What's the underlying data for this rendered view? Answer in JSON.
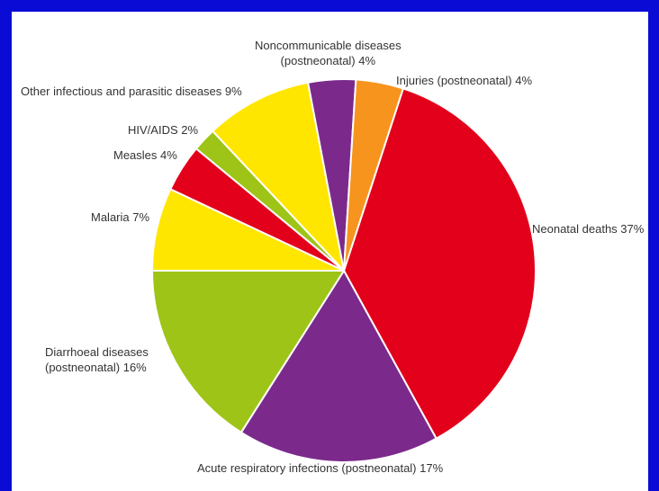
{
  "chart_data": {
    "type": "pie",
    "title": "",
    "slices": [
      {
        "label": "Neonatal deaths",
        "value": 37,
        "label_lines": [
          "Neonatal deaths 37%"
        ],
        "color": "#e3001b"
      },
      {
        "label": "Acute respiratory infections (postneonatal)",
        "value": 17,
        "label_lines": [
          "Acute respiratory infections (postneonatal) 17%"
        ],
        "color": "#7b2a8c"
      },
      {
        "label": "Diarrhoeal diseases (postneonatal)",
        "value": 16,
        "label_lines": [
          "Diarrhoeal diseases",
          "(postneonatal) 16%"
        ],
        "color": "#9ec417"
      },
      {
        "label": "Malaria",
        "value": 7,
        "label_lines": [
          "Malaria 7%"
        ],
        "color": "#ffe600"
      },
      {
        "label": "Measles",
        "value": 4,
        "label_lines": [
          "Measles 4%"
        ],
        "color": "#e3001b"
      },
      {
        "label": "HIV/AIDS",
        "value": 2,
        "label_lines": [
          "HIV/AIDS 2%"
        ],
        "color": "#9ec417"
      },
      {
        "label": "Other infectious and parasitic diseases",
        "value": 9,
        "label_lines": [
          "Other infectious and parasitic diseases 9%"
        ],
        "color": "#ffe600"
      },
      {
        "label": "Noncommunicable diseases (postneonatal)",
        "value": 4,
        "label_lines": [
          "Noncommunicable diseases",
          "(postneonatal) 4%"
        ],
        "color": "#7b2a8c"
      },
      {
        "label": "Injuries (postneonatal)",
        "value": 4,
        "label_lines": [
          "Injuries (postneonatal) 4%"
        ],
        "color": "#f7941d"
      }
    ]
  },
  "colors": {
    "frame": "#0b0bd6",
    "panel": "#ffffff",
    "label_text": "#333333"
  }
}
